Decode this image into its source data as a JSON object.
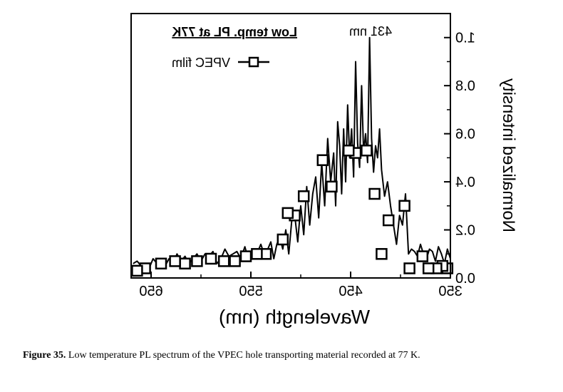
{
  "chart_data": {
    "type": "line",
    "title": "Low temp. PL at 77K",
    "xlabel": "Wavelength (nm)",
    "ylabel": "Normalized intensity",
    "xlim": [
      350,
      670
    ],
    "ylim": [
      0.0,
      1.1
    ],
    "x_tick_labels": [
      "350",
      "450",
      "550",
      "650"
    ],
    "x_ticks": [
      350,
      450,
      550,
      650
    ],
    "y_tick_labels": [
      "0.0",
      "0.2",
      "0.4",
      "0.6",
      "0.8",
      "1.0"
    ],
    "y_ticks": [
      0.0,
      0.2,
      0.4,
      0.6,
      0.8,
      1.0
    ],
    "annotations": [
      {
        "text": "431 nm",
        "x": 431,
        "y": 1.0
      }
    ],
    "legend_placement": "top-left (mirrored)",
    "mirrored": true,
    "series": [
      {
        "name": "VPEC film",
        "marker": "open-square",
        "x": [
          350,
          353,
          356,
          359,
          362,
          365,
          368,
          371,
          374,
          377,
          380,
          383,
          386,
          389,
          392,
          395,
          398,
          401,
          404,
          407,
          410,
          413,
          416,
          419,
          421,
          423,
          425,
          427,
          429,
          431,
          433,
          435,
          437,
          439,
          441,
          443,
          445,
          447,
          449,
          451,
          453,
          455,
          457,
          459,
          461,
          463,
          465,
          467,
          470,
          473,
          476,
          479,
          482,
          485,
          488,
          491,
          494,
          497,
          500,
          503,
          506,
          509,
          512,
          515,
          518,
          521,
          524,
          527,
          530,
          533,
          536,
          540,
          544,
          548,
          552,
          556,
          560,
          564,
          568,
          572,
          576,
          580,
          584,
          588,
          592,
          596,
          600,
          604,
          608,
          612,
          616,
          620,
          624,
          628,
          632,
          636,
          640,
          644,
          648,
          652,
          656,
          660,
          664,
          668
        ],
        "y": [
          0.08,
          0.12,
          0.06,
          0.1,
          0.13,
          0.07,
          0.11,
          0.12,
          0.08,
          0.1,
          0.14,
          0.09,
          0.11,
          0.12,
          0.1,
          0.35,
          0.22,
          0.26,
          0.14,
          0.22,
          0.3,
          0.4,
          0.34,
          0.45,
          0.62,
          0.5,
          0.55,
          0.44,
          0.58,
          1.0,
          0.48,
          0.6,
          0.52,
          0.8,
          0.46,
          0.56,
          0.9,
          0.42,
          0.62,
          0.5,
          0.72,
          0.4,
          0.62,
          0.35,
          0.55,
          0.65,
          0.3,
          0.52,
          0.4,
          0.58,
          0.3,
          0.48,
          0.25,
          0.42,
          0.35,
          0.22,
          0.38,
          0.18,
          0.3,
          0.15,
          0.26,
          0.24,
          0.1,
          0.2,
          0.12,
          0.17,
          0.14,
          0.08,
          0.15,
          0.12,
          0.09,
          0.14,
          0.1,
          0.12,
          0.07,
          0.13,
          0.08,
          0.11,
          0.1,
          0.09,
          0.12,
          0.08,
          0.06,
          0.11,
          0.09,
          0.1,
          0.07,
          0.1,
          0.08,
          0.06,
          0.09,
          0.07,
          0.1,
          0.06,
          0.08,
          0.05,
          0.07,
          0.06,
          0.08,
          0.04,
          0.06,
          0.05,
          0.07,
          0.06
        ],
        "marker_x": [
          353,
          358,
          364,
          372,
          378,
          391,
          396,
          412,
          419,
          426,
          434,
          445,
          452,
          469,
          478,
          497,
          506,
          513,
          518,
          535,
          544,
          555,
          566,
          577,
          590,
          604,
          616,
          626,
          640,
          656,
          664
        ],
        "marker_y": [
          0.04,
          0.05,
          0.04,
          0.04,
          0.09,
          0.04,
          0.3,
          0.24,
          0.1,
          0.35,
          0.53,
          0.52,
          0.53,
          0.38,
          0.49,
          0.34,
          0.26,
          0.27,
          0.16,
          0.1,
          0.1,
          0.09,
          0.07,
          0.07,
          0.08,
          0.07,
          0.06,
          0.07,
          0.06,
          0.04,
          0.03
        ]
      }
    ]
  },
  "caption": {
    "label": "Figure 35.",
    "text": "Low temperature PL spectrum of the VPEC hole transporting material recorded at 77 K."
  }
}
